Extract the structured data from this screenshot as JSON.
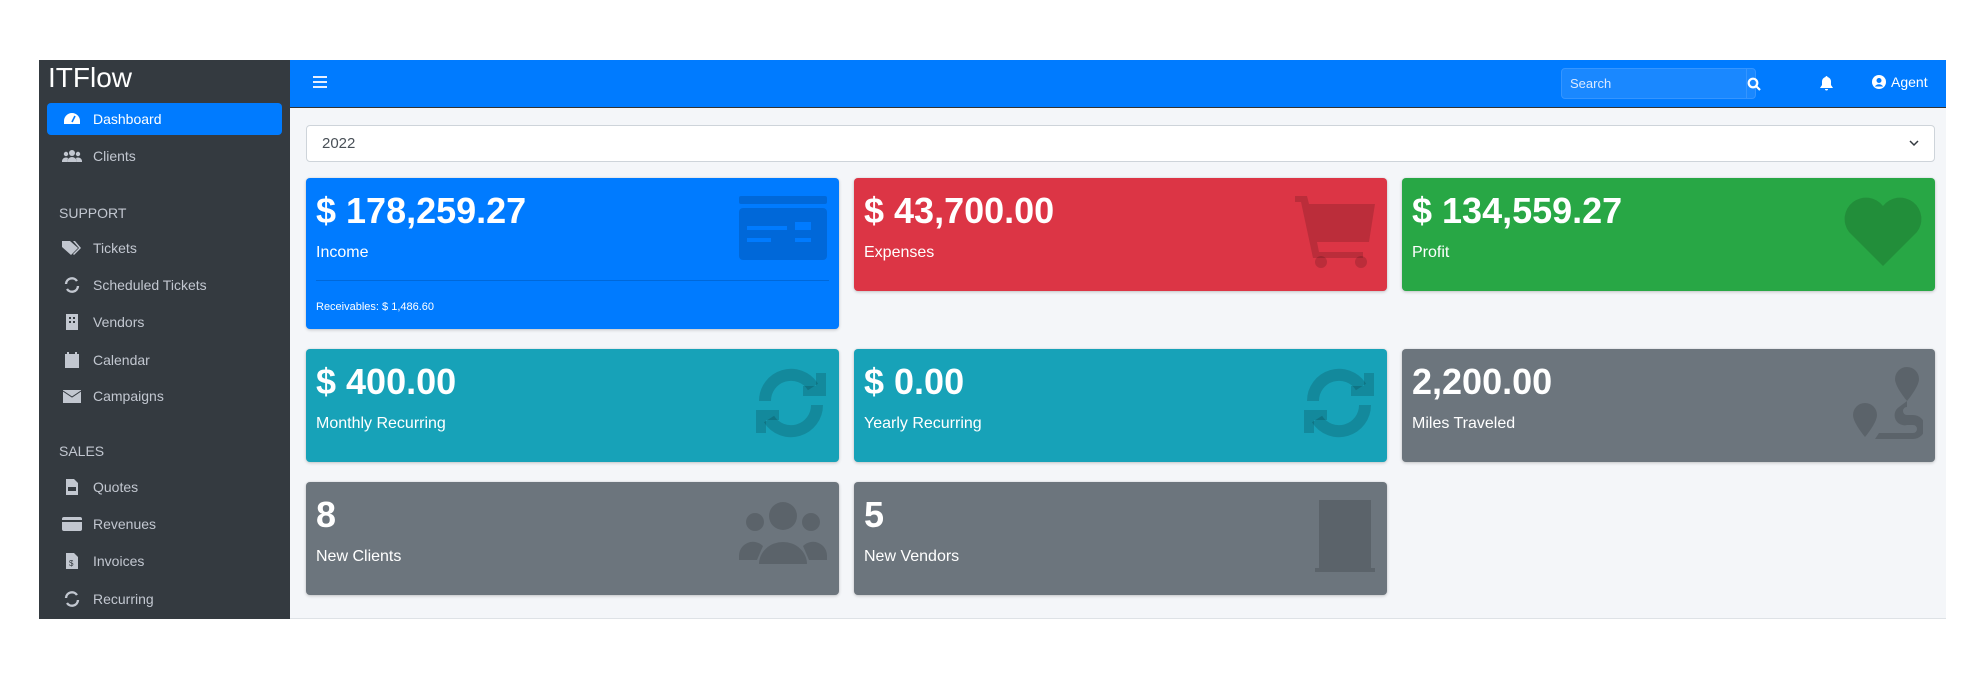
{
  "sidebar": {
    "brand": "ITFlow",
    "items": [
      {
        "label": "Dashboard",
        "icon": "tachometer-icon",
        "active": true
      },
      {
        "label": "Clients",
        "icon": "users-icon"
      }
    ],
    "support_header": "SUPPORT",
    "support": [
      {
        "label": "Tickets",
        "icon": "tags-icon"
      },
      {
        "label": "Scheduled Tickets",
        "icon": "sync-icon"
      },
      {
        "label": "Vendors",
        "icon": "building-icon"
      },
      {
        "label": "Calendar",
        "icon": "calendar-icon"
      },
      {
        "label": "Campaigns",
        "icon": "envelope-icon"
      }
    ],
    "sales_header": "SALES",
    "sales": [
      {
        "label": "Quotes",
        "icon": "file-icon"
      },
      {
        "label": "Revenues",
        "icon": "credit-card-icon"
      },
      {
        "label": "Invoices",
        "icon": "file-invoice-dollar-icon"
      },
      {
        "label": "Recurring",
        "icon": "sync-icon"
      }
    ]
  },
  "navbar": {
    "search_placeholder": "Search",
    "user": "Agent"
  },
  "filter": {
    "year": "2022"
  },
  "cards": [
    {
      "value": "$ 178,259.27",
      "label": "Income",
      "footer": "Receivables: $ 1,486.60",
      "color": "#007bff",
      "icon": "credit-card-icon"
    },
    {
      "value": "$ 43,700.00",
      "label": "Expenses",
      "color": "#dc3545",
      "icon": "shopping-cart-icon"
    },
    {
      "value": "$ 134,559.27",
      "label": "Profit",
      "color": "#28a745",
      "icon": "heart-icon"
    },
    {
      "value": "$ 400.00",
      "label": "Monthly Recurring",
      "color": "#17a2b8",
      "icon": "sync-icon"
    },
    {
      "value": "$ 0.00",
      "label": "Yearly Recurring",
      "color": "#17a2b8",
      "icon": "sync-icon"
    },
    {
      "value": "2,200.00",
      "label": "Miles Traveled",
      "color": "#6c757d",
      "icon": "route-icon"
    },
    {
      "value": "8",
      "label": "New Clients",
      "color": "#6c757d",
      "icon": "users-icon"
    },
    {
      "value": "5",
      "label": "New Vendors",
      "color": "#6c757d",
      "icon": "building-icon"
    }
  ]
}
